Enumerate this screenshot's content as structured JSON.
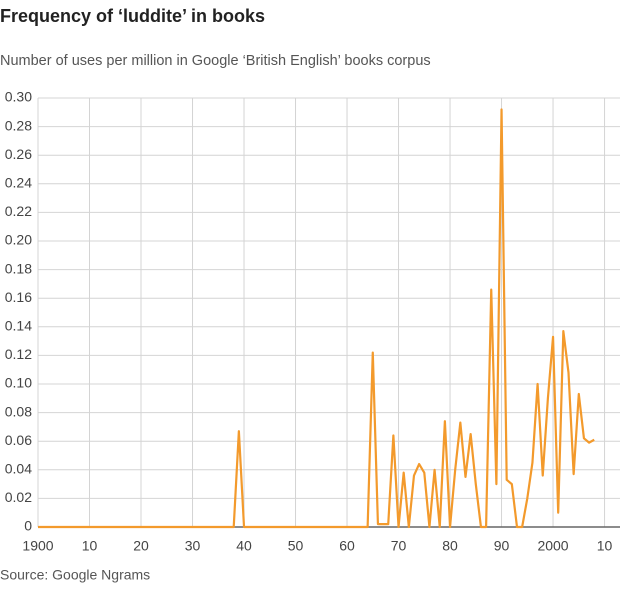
{
  "chart_data": {
    "type": "line",
    "title": "Frequency of ‘luddite’ in books",
    "subtitle": "Number of uses per million in Google ‘British English’ books corpus",
    "source": "Source: Google Ngrams",
    "x": [
      1900,
      1901,
      1902,
      1903,
      1904,
      1905,
      1906,
      1907,
      1908,
      1909,
      1910,
      1911,
      1912,
      1913,
      1914,
      1915,
      1916,
      1917,
      1918,
      1919,
      1920,
      1921,
      1922,
      1923,
      1924,
      1925,
      1926,
      1927,
      1928,
      1929,
      1930,
      1931,
      1932,
      1933,
      1934,
      1935,
      1936,
      1937,
      1938,
      1939,
      1940,
      1941,
      1942,
      1943,
      1944,
      1945,
      1946,
      1947,
      1948,
      1949,
      1950,
      1951,
      1952,
      1953,
      1954,
      1955,
      1956,
      1957,
      1958,
      1959,
      1960,
      1961,
      1962,
      1963,
      1964,
      1965,
      1966,
      1967,
      1968,
      1969,
      1970,
      1971,
      1972,
      1973,
      1974,
      1975,
      1976,
      1977,
      1978,
      1979,
      1980,
      1981,
      1982,
      1983,
      1984,
      1985,
      1986,
      1987,
      1988,
      1989,
      1990,
      1991,
      1992,
      1993,
      1994,
      1995,
      1996,
      1997,
      1998,
      1999,
      2000,
      2001,
      2002,
      2003,
      2004,
      2005,
      2006,
      2007,
      2008
    ],
    "series": [
      {
        "name": "luddite",
        "color": "#f39a2c",
        "values": [
          0,
          0,
          0,
          0,
          0,
          0,
          0,
          0,
          0,
          0,
          0,
          0,
          0,
          0,
          0,
          0,
          0,
          0,
          0,
          0,
          0,
          0,
          0,
          0,
          0,
          0,
          0,
          0,
          0,
          0,
          0,
          0,
          0,
          0,
          0,
          0,
          0,
          0,
          0,
          0.067,
          0,
          0,
          0,
          0,
          0,
          0,
          0,
          0,
          0,
          0,
          0,
          0,
          0,
          0,
          0,
          0,
          0,
          0,
          0,
          0,
          0,
          0,
          0,
          0,
          0,
          0.122,
          0.002,
          0.002,
          0.002,
          0.064,
          0,
          0.038,
          0,
          0.036,
          0.044,
          0.038,
          0,
          0.04,
          0,
          0.074,
          0,
          0.04,
          0.073,
          0.035,
          0.065,
          0.03,
          0,
          0,
          0.166,
          0.03,
          0.292,
          0.033,
          0.03,
          0,
          0,
          0.02,
          0.045,
          0.1,
          0.036,
          0.09,
          0.133,
          0.01,
          0.137,
          0.108,
          0.037,
          0.093,
          0.062,
          0.059,
          0.061
        ]
      }
    ],
    "xlim": [
      1900,
      2013
    ],
    "xticks": [
      1900,
      {
        "value": 1910,
        "label": "10"
      },
      {
        "value": 1920,
        "label": "20"
      },
      {
        "value": 1930,
        "label": "30"
      },
      {
        "value": 1940,
        "label": "40"
      },
      {
        "value": 1950,
        "label": "50"
      },
      {
        "value": 1960,
        "label": "60"
      },
      {
        "value": 1970,
        "label": "70"
      },
      {
        "value": 1980,
        "label": "80"
      },
      {
        "value": 1990,
        "label": "90"
      },
      2000,
      {
        "value": 2010,
        "label": "10"
      }
    ],
    "ylim": [
      0,
      0.3
    ],
    "yticks": [
      0,
      0.02,
      0.04,
      0.06,
      0.08,
      {
        "value": 0.1,
        "label": "0.10"
      },
      0.12,
      0.14,
      0.16,
      0.18,
      {
        "value": 0.2,
        "label": "0.20"
      },
      0.22,
      0.24,
      0.26,
      0.28,
      {
        "value": 0.3,
        "label": "0.30"
      }
    ],
    "grid": true
  }
}
